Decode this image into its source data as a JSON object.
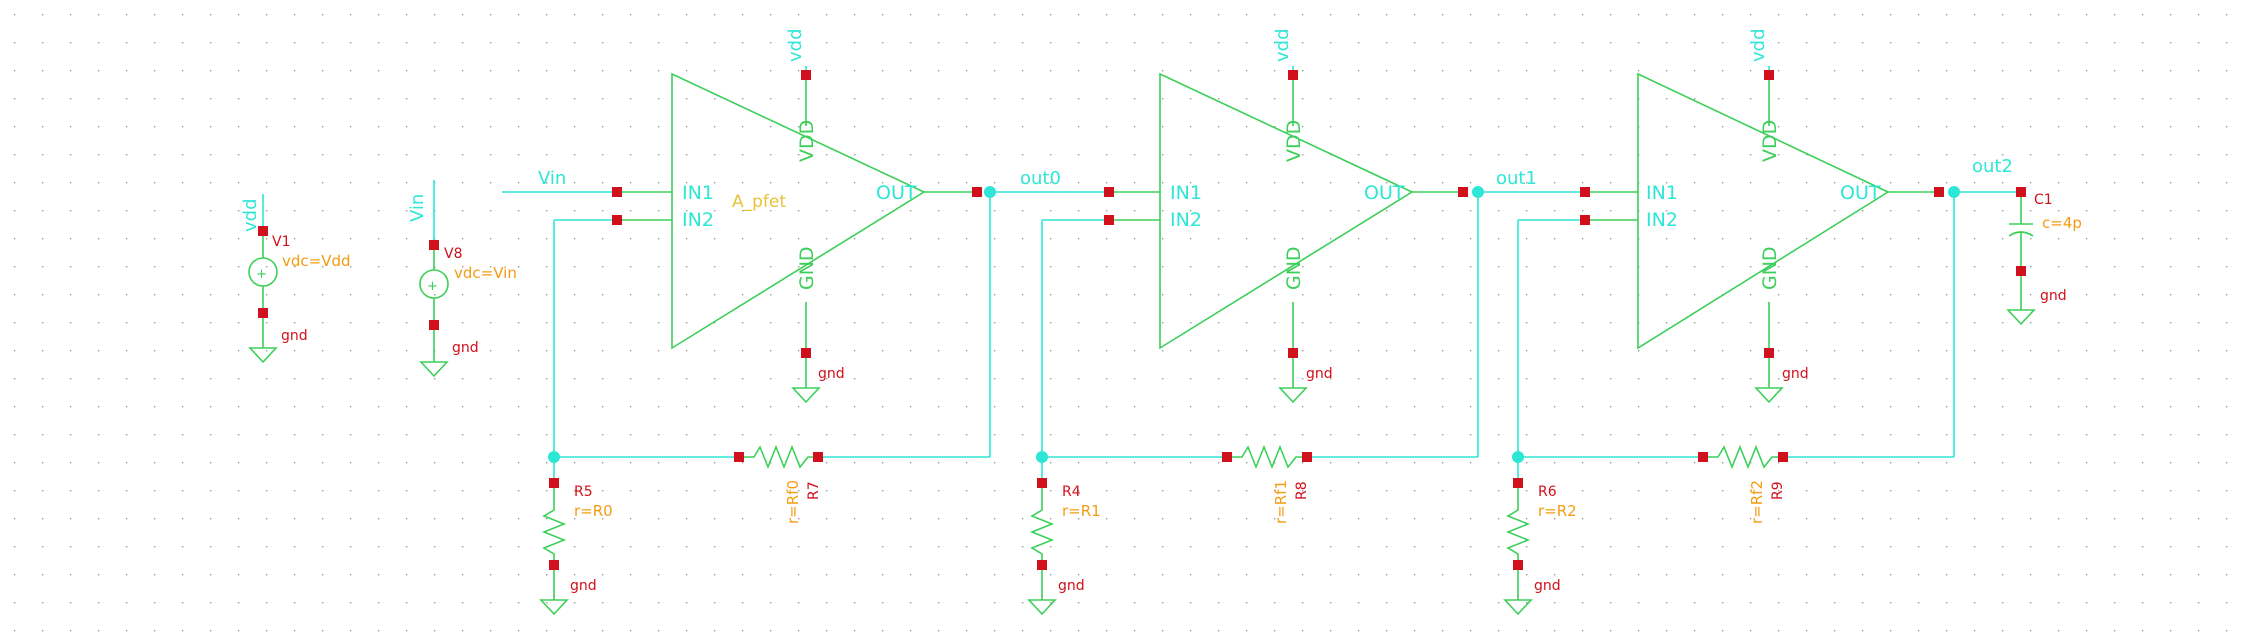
{
  "canvas": {
    "background": "#ffffff",
    "grid_color": "#9a9a9a",
    "wire_color": "#2ee6d6",
    "symbol_color": "#3ccf5a",
    "pin_color": "#d0101a",
    "param_color": "#f39c12"
  },
  "sources": [
    {
      "net": "vdd",
      "instance": "V1",
      "param": "vdc=Vdd",
      "ground": "gnd"
    },
    {
      "net": "Vin",
      "instance": "V8",
      "param": "vdc=Vin",
      "ground": "gnd"
    }
  ],
  "input_label": "Vin",
  "amplifiers": [
    {
      "cell": "A_pfet",
      "pins": {
        "in1": "IN1",
        "in2": "IN2",
        "out": "OUT",
        "vdd": "VDD",
        "gnd": "GND"
      },
      "supply": "vdd",
      "ground": "gnd",
      "out_net": "out0",
      "rin": {
        "instance": "R5",
        "param": "r=R0",
        "ground": "gnd"
      },
      "rf": {
        "instance": "R7",
        "param": "r=Rf0"
      }
    },
    {
      "cell": "",
      "pins": {
        "in1": "IN1",
        "in2": "IN2",
        "out": "OUT",
        "vdd": "VDD",
        "gnd": "GND"
      },
      "supply": "vdd",
      "ground": "gnd",
      "out_net": "out1",
      "rin": {
        "instance": "R4",
        "param": "r=R1",
        "ground": "gnd"
      },
      "rf": {
        "instance": "R8",
        "param": "r=Rf1"
      }
    },
    {
      "cell": "",
      "pins": {
        "in1": "IN1",
        "in2": "IN2",
        "out": "OUT",
        "vdd": "VDD",
        "gnd": "GND"
      },
      "supply": "vdd",
      "ground": "gnd",
      "out_net": "out2",
      "rin": {
        "instance": "R6",
        "param": "r=R2",
        "ground": "gnd"
      },
      "rf": {
        "instance": "R9",
        "param": "r=Rf2"
      }
    }
  ],
  "load_cap": {
    "instance": "C1",
    "param": "c=4p",
    "ground": "gnd"
  }
}
